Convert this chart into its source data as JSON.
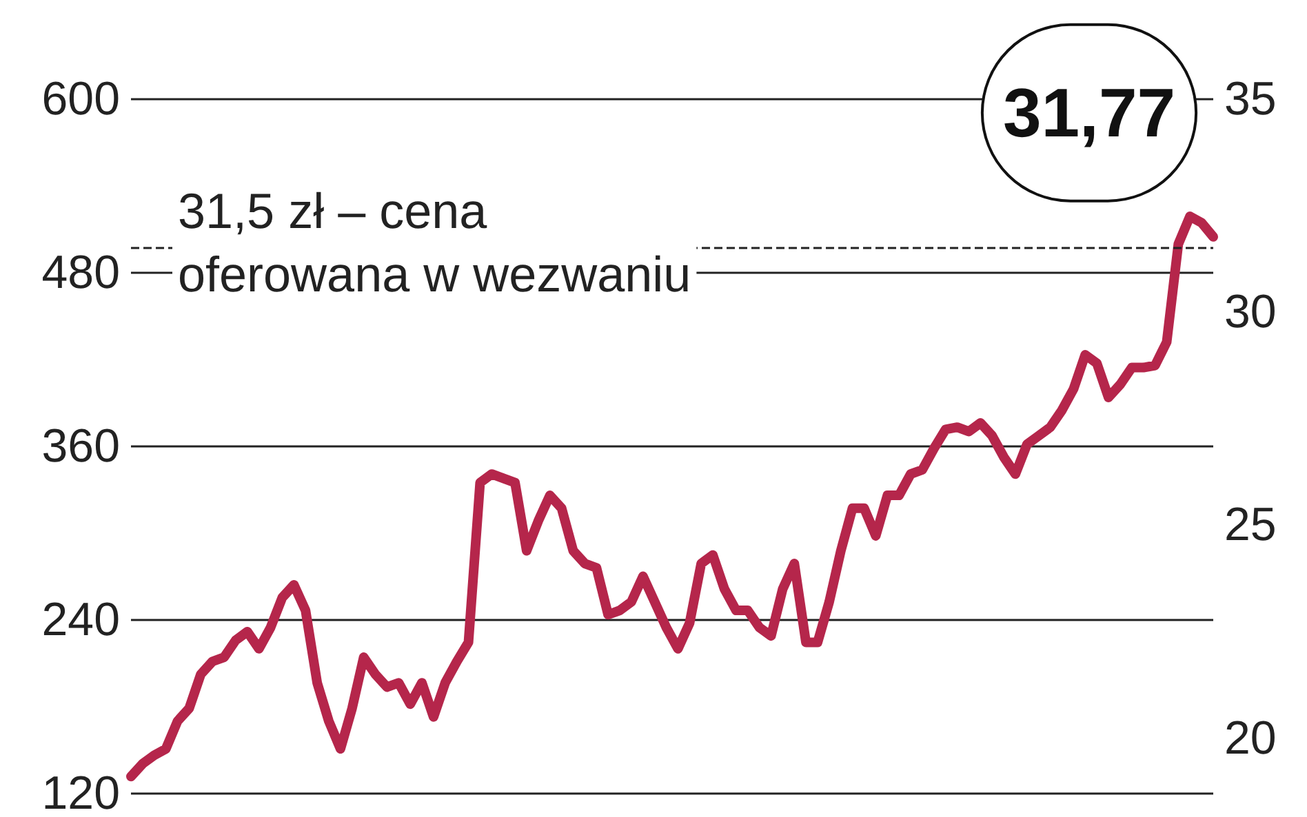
{
  "chart_data": {
    "type": "line",
    "categories": [
      null,
      null,
      null,
      null,
      null,
      null,
      null,
      null,
      null,
      null,
      null,
      null,
      null,
      null,
      null,
      null,
      null,
      null,
      null,
      null,
      null,
      null,
      null,
      null,
      null,
      null,
      null,
      null,
      null,
      null,
      null,
      null,
      null,
      null,
      null,
      null,
      null,
      null,
      null,
      null,
      null,
      null,
      null,
      null,
      null,
      null,
      null,
      null,
      null,
      null,
      null,
      null,
      null,
      null,
      null,
      null,
      null,
      null,
      null,
      null,
      null,
      null,
      null,
      null,
      null,
      null,
      null,
      null,
      null,
      null,
      null,
      null,
      null,
      null,
      null,
      null,
      null,
      null,
      null,
      null,
      null,
      null,
      null,
      null,
      null,
      null,
      null,
      null,
      null,
      null,
      null,
      null,
      null,
      null
    ],
    "series": [
      {
        "color": "#b5264b",
        "axis": "y2",
        "values": [
          19.1,
          19.4,
          19.6,
          19.75,
          20.4,
          20.7,
          21.5,
          21.8,
          21.9,
          22.3,
          22.5,
          22.1,
          22.6,
          23.3,
          23.6,
          23.0,
          21.3,
          20.4,
          19.75,
          20.7,
          21.9,
          21.5,
          21.2,
          21.3,
          20.8,
          21.3,
          20.5,
          21.3,
          21.8,
          22.25,
          26.0,
          26.2,
          26.1,
          26.0,
          24.4,
          25.1,
          25.7,
          25.4,
          24.4,
          24.1,
          24.0,
          22.9,
          23.0,
          23.2,
          23.8,
          23.2,
          22.6,
          22.1,
          22.7,
          24.1,
          24.3,
          23.5,
          23.0,
          23.0,
          22.6,
          22.4,
          23.5,
          24.1,
          22.25,
          22.25,
          23.2,
          24.4,
          25.4,
          25.4,
          24.75,
          25.7,
          25.7,
          26.2,
          26.3,
          26.8,
          27.25,
          27.3,
          27.2,
          27.4,
          27.1,
          26.6,
          26.2,
          26.9,
          27.1,
          27.3,
          27.7,
          28.2,
          29.0,
          28.8,
          28.0,
          28.3,
          28.7,
          28.7,
          28.75,
          29.3,
          31.6,
          32.25,
          32.1,
          31.77
        ],
        "value_labels": [
          null,
          null,
          null,
          null,
          null,
          null,
          null,
          null,
          null,
          null,
          null,
          null,
          null,
          null,
          null,
          null,
          null,
          null,
          null,
          null,
          null,
          null,
          null,
          null,
          null,
          null,
          null,
          null,
          null,
          null,
          null,
          null,
          null,
          null,
          null,
          null,
          null,
          null,
          null,
          null,
          null,
          null,
          null,
          null,
          null,
          null,
          null,
          null,
          null,
          null,
          null,
          null,
          null,
          null,
          null,
          null,
          null,
          null,
          null,
          null,
          null,
          null,
          null,
          null,
          null,
          null,
          null,
          null,
          null,
          null,
          null,
          null,
          null,
          null,
          null,
          null,
          null,
          null,
          null,
          null,
          null,
          null,
          null,
          null,
          null,
          null,
          null,
          null,
          null,
          null,
          null,
          null,
          null,
          "31,77"
        ]
      }
    ],
    "ylim": [
      120,
      600
    ],
    "yticks": [
      120,
      240,
      360,
      480,
      600
    ],
    "y2lim": [
      18.7,
      35
    ],
    "y2ticks": [
      20,
      25,
      30,
      35
    ],
    "ref_lines": [
      {
        "axis": "y2",
        "value": 31.5,
        "line_style": "dashed",
        "color": "#222222"
      }
    ],
    "annotations": [
      "31,5 zł – cena oferowana w wezwaniu"
    ],
    "grid": "y",
    "tick_labels": "y",
    "line_style": "solid"
  }
}
